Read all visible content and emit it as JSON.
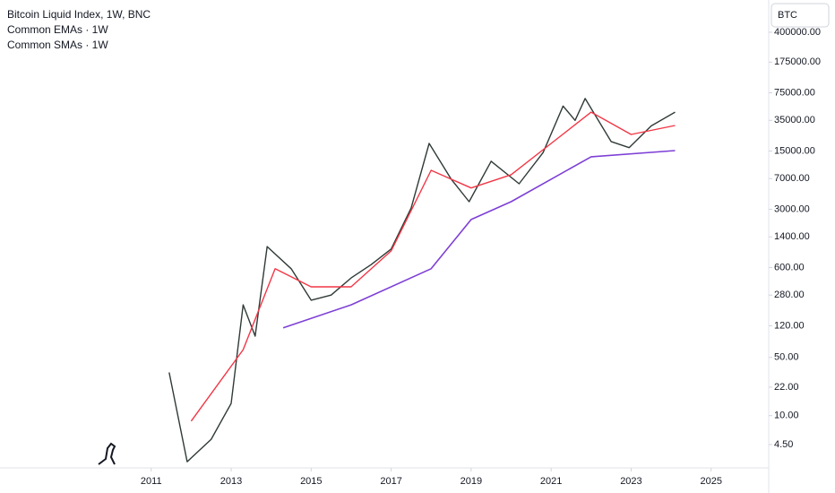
{
  "chart_data": {
    "type": "line",
    "title": "Bitcoin Liquid Index, 1W, BNC",
    "legend": [
      "Common EMAs · 1W",
      "Common SMAs · 1W"
    ],
    "unit_label": "BTC",
    "log_scale": true,
    "grid": false,
    "xlim": [
      2007.22,
      2026.44
    ],
    "xticks": [
      2011,
      2013,
      2015,
      2017,
      2019,
      2021,
      2023,
      2025
    ],
    "ylim": [
      2.36,
      975000
    ],
    "yticks": [
      {
        "value": 4.5,
        "label": "4.50"
      },
      {
        "value": 10,
        "label": "10.00"
      },
      {
        "value": 22,
        "label": "22.00"
      },
      {
        "value": 50,
        "label": "50.00"
      },
      {
        "value": 120,
        "label": "120.00"
      },
      {
        "value": 280,
        "label": "280.00"
      },
      {
        "value": 600,
        "label": "600.00"
      },
      {
        "value": 1400,
        "label": "1400.00"
      },
      {
        "value": 3000,
        "label": "3000.00"
      },
      {
        "value": 7000,
        "label": "7000.00"
      },
      {
        "value": 15000,
        "label": "15000.00"
      },
      {
        "value": 35000,
        "label": "35000.00"
      },
      {
        "value": 75000,
        "label": "75000.00"
      },
      {
        "value": 175000,
        "label": "175000.00"
      },
      {
        "value": 400000,
        "label": "400000.00"
      }
    ],
    "series": [
      {
        "color": "#2f3a36",
        "width": 1.4,
        "x": [
          2011.45,
          2011.9,
          2012.5,
          2013.0,
          2013.3,
          2013.6,
          2013.9,
          2014.5,
          2015.0,
          2015.5,
          2016.0,
          2016.5,
          2017.0,
          2017.5,
          2017.95,
          2018.5,
          2018.95,
          2019.5,
          2020.2,
          2020.8,
          2021.3,
          2021.6,
          2021.85,
          2022.5,
          2022.95,
          2023.5,
          2024.1
        ],
        "values": [
          33,
          2.8,
          5.2,
          14,
          214,
          90,
          1070,
          580,
          243,
          280,
          450,
          650,
          1000,
          3100,
          18500,
          6900,
          3700,
          11300,
          6070,
          14400,
          52000,
          35000,
          64000,
          19500,
          16500,
          30000,
          44000
        ]
      },
      {
        "color": "#f23645",
        "width": 1.4,
        "x": [
          2012.0,
          2013.3,
          2014.1,
          2015.0,
          2016.0,
          2017.0,
          2018.0,
          2019.0,
          2020.0,
          2021.0,
          2022.0,
          2023.0,
          2024.1
        ],
        "values": [
          8.6,
          62,
          580,
          352,
          352,
          950,
          8800,
          5400,
          7800,
          18500,
          44000,
          23700,
          30400
        ]
      },
      {
        "color": "#7e3fd6",
        "width": 1.6,
        "x": [
          2014.3,
          2016.0,
          2018.0,
          2019.0,
          2020.0,
          2021.0,
          2022.0,
          2024.1
        ],
        "values": [
          113,
          214,
          580,
          2260,
          3700,
          6900,
          12800,
          15200
        ]
      }
    ]
  }
}
